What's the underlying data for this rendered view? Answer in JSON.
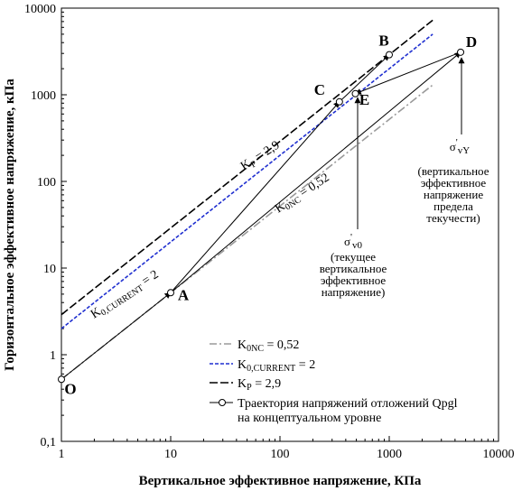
{
  "chart_data": {
    "type": "line",
    "xscale": "log",
    "yscale": "log",
    "xlim": [
      1,
      10000
    ],
    "ylim": [
      0.1,
      10000
    ],
    "xlabel": "Вертикальное эффективное напряжение, КПа",
    "ylabel": "Горизонтальное эффективное напряжение, кПа",
    "x_ticks": [
      "1",
      "10",
      "100",
      "1000",
      "10000"
    ],
    "y_ticks": [
      "0,1",
      "1",
      "10",
      "100",
      "1000",
      "10000"
    ],
    "grid": false,
    "legend_position": "bottom-right",
    "series": [
      {
        "name": "K0NC = 0,52",
        "name_main": "K",
        "name_sub": "0NC",
        "name_rest": " = 0,52",
        "style": "dashdot",
        "color": "#9a9a9a",
        "x": [
          1,
          2500
        ],
        "y": [
          0.52,
          1300
        ]
      },
      {
        "name": "K0,CURRENT = 2",
        "name_main": "K",
        "name_sub": "0,CURRENT",
        "name_rest": " = 2",
        "style": "dashed",
        "color": "#1f2fd0",
        "x": [
          1,
          2500
        ],
        "y": [
          2,
          5000
        ]
      },
      {
        "name": "Kp = 2,9",
        "name_main": "K",
        "name_sub": "P",
        "name_rest": " = 2,9",
        "style": "longdash",
        "color": "#000000",
        "x": [
          1,
          2500
        ],
        "y": [
          2.9,
          7250
        ]
      },
      {
        "name": "Траектория напряжений отложений Qpgl на концептуальном уровне",
        "legend_lines": [
          "Траектория напряжений отложений Qpgl",
          "на концептуальном уровне"
        ],
        "style": "solid-markers",
        "color": "#000000",
        "x": [
          1,
          10,
          350,
          1000,
          4500,
          490
        ],
        "y": [
          0.52,
          5.2,
          830,
          2900,
          3100,
          1030
        ]
      }
    ],
    "points": [
      {
        "label": "O",
        "x": 1,
        "y": 0.52
      },
      {
        "label": "A",
        "x": 10,
        "y": 5.2
      },
      {
        "label": "C",
        "x": 350,
        "y": 830
      },
      {
        "label": "B",
        "x": 1000,
        "y": 2900
      },
      {
        "label": "D",
        "x": 4500,
        "y": 3100
      },
      {
        "label": "E",
        "x": 490,
        "y": 1030
      }
    ],
    "line_labels": [
      {
        "main": "K",
        "sub": "P",
        "rest": " = 2,9"
      },
      {
        "main": "K",
        "sub": "0NC",
        "rest": " = 0,52"
      },
      {
        "main": "K",
        "sub": "0,CURRENT",
        "rest": " = 2"
      }
    ],
    "annotations": [
      {
        "symbol": "σ",
        "prime": "'",
        "sub": "v0",
        "text": [
          "(текущее",
          "вертикальное",
          "эффективное",
          "напряжение)"
        ]
      },
      {
        "symbol": "σ",
        "prime": "'",
        "sub": "vY",
        "text": [
          "(вертикальное",
          "эффективное",
          "напряжение",
          "предела",
          "текучести)"
        ]
      }
    ]
  }
}
